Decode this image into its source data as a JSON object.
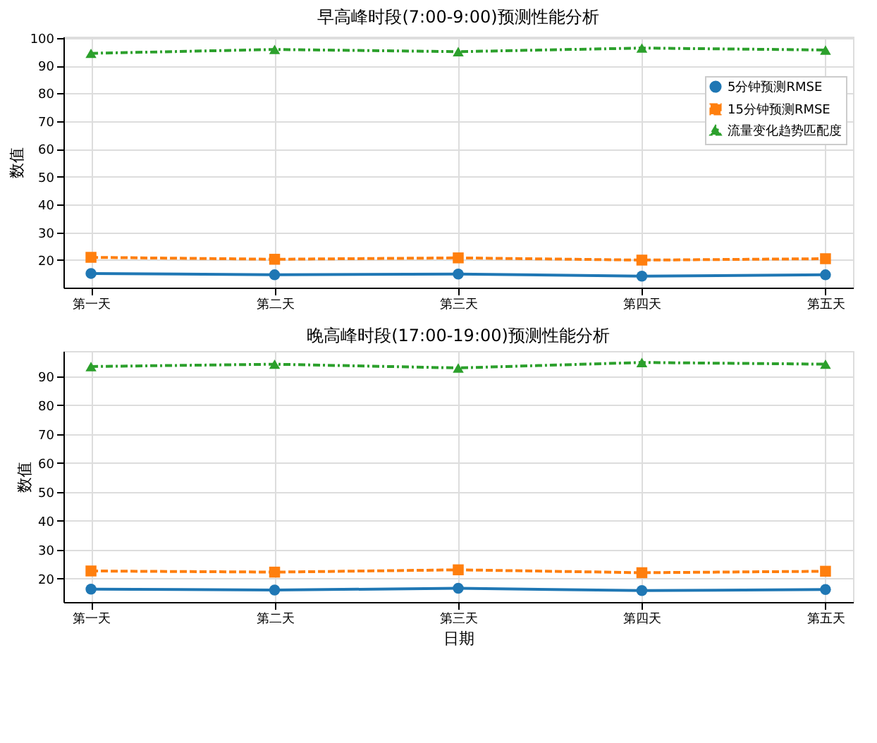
{
  "chart_data": [
    {
      "type": "line",
      "title": "早高峰时段(7:00-9:00)预测性能分析",
      "ylabel": "数值",
      "categories": [
        "第一天",
        "第二天",
        "第三天",
        "第四天",
        "第五天"
      ],
      "ylim": [
        10.1,
        100.4
      ],
      "yticks": [
        20,
        30,
        40,
        50,
        60,
        70,
        80,
        90,
        100
      ],
      "grid": true,
      "legend": "top right",
      "series": [
        {
          "name": "5分钟预测RMSE",
          "color": "#1f77b4",
          "marker": "circle",
          "line_style": "solid",
          "values": [
            15.2,
            14.7,
            15.0,
            14.2,
            14.7
          ]
        },
        {
          "name": "15分钟预测RMSE",
          "color": "#ff7f0e",
          "marker": "square",
          "line_style": "dashed",
          "values": [
            21.0,
            20.3,
            20.8,
            20.0,
            20.5
          ]
        },
        {
          "name": "流量变化趋势匹配度",
          "color": "#2ca02c",
          "marker": "triangle",
          "line_style": "dashdot",
          "values": [
            94.4,
            95.8,
            95.0,
            96.3,
            95.6
          ]
        }
      ]
    },
    {
      "type": "line",
      "title": "晚高峰时段(17:00-19:00)预测性能分析",
      "xlabel": "日期",
      "ylabel": "数值",
      "categories": [
        "第一天",
        "第二天",
        "第三天",
        "第四天",
        "第五天"
      ],
      "ylim": [
        11.85,
        98.75
      ],
      "yticks": [
        20,
        30,
        40,
        50,
        60,
        70,
        80,
        90
      ],
      "grid": true,
      "legend": "top right",
      "series": [
        {
          "name": "5分钟预测RMSE",
          "color": "#1f77b4",
          "marker": "circle",
          "line_style": "solid",
          "values": [
            16.3,
            16.0,
            16.6,
            15.8,
            16.2
          ]
        },
        {
          "name": "15分钟预测RMSE",
          "color": "#ff7f0e",
          "marker": "square",
          "line_style": "dashed",
          "values": [
            22.6,
            22.2,
            23.0,
            22.0,
            22.5
          ]
        },
        {
          "name": "流量变化趋势匹配度",
          "color": "#2ca02c",
          "marker": "triangle",
          "line_style": "dashdot",
          "values": [
            93.4,
            94.2,
            92.9,
            94.8,
            94.2
          ]
        }
      ]
    }
  ]
}
